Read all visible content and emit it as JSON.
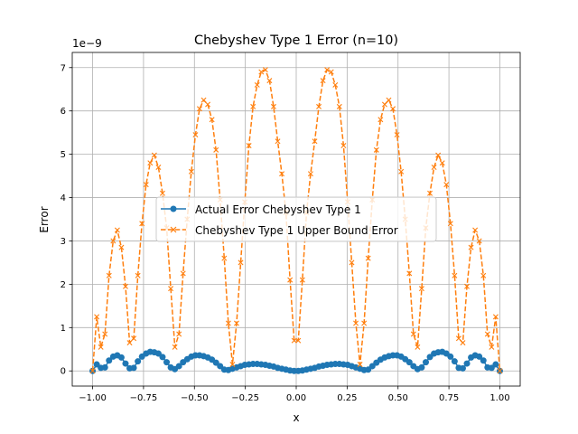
{
  "chart_data": {
    "type": "line",
    "title": "Chebyshev Type 1 Error (n=10)",
    "xlabel": "x",
    "ylabel": "Error",
    "offset_label": "1e−9",
    "xlim": [
      -1.1,
      1.1
    ],
    "ylim": [
      -0.35,
      7.35
    ],
    "grid": true,
    "legend_position": "center",
    "x_ticks": [
      {
        "value": -1.0,
        "label": "−1.00"
      },
      {
        "value": -0.75,
        "label": "−0.75"
      },
      {
        "value": -0.5,
        "label": "−0.50"
      },
      {
        "value": -0.25,
        "label": "−0.25"
      },
      {
        "value": 0.0,
        "label": "0.00"
      },
      {
        "value": 0.25,
        "label": "0.25"
      },
      {
        "value": 0.5,
        "label": "0.50"
      },
      {
        "value": 0.75,
        "label": "0.75"
      },
      {
        "value": 1.0,
        "label": "1.00"
      }
    ],
    "y_ticks": [
      {
        "value": 0,
        "label": "0"
      },
      {
        "value": 1,
        "label": "1"
      },
      {
        "value": 2,
        "label": "2"
      },
      {
        "value": 3,
        "label": "3"
      },
      {
        "value": 4,
        "label": "4"
      },
      {
        "value": 5,
        "label": "5"
      },
      {
        "value": 6,
        "label": "6"
      },
      {
        "value": 7,
        "label": "7"
      }
    ],
    "x": [
      -1.0,
      -0.9798,
      -0.9596,
      -0.9394,
      -0.9192,
      -0.899,
      -0.8788,
      -0.8586,
      -0.8384,
      -0.8182,
      -0.798,
      -0.7778,
      -0.7576,
      -0.7374,
      -0.7172,
      -0.697,
      -0.6768,
      -0.6566,
      -0.6364,
      -0.6162,
      -0.596,
      -0.5758,
      -0.5556,
      -0.5354,
      -0.5152,
      -0.4949,
      -0.4747,
      -0.4545,
      -0.4343,
      -0.4141,
      -0.3939,
      -0.3737,
      -0.3535,
      -0.3333,
      -0.3131,
      -0.2929,
      -0.2727,
      -0.2525,
      -0.2323,
      -0.2121,
      -0.1919,
      -0.1717,
      -0.1515,
      -0.1313,
      -0.1111,
      -0.0909,
      -0.0707,
      -0.0505,
      -0.0303,
      -0.0101,
      0.0101,
      0.0303,
      0.0505,
      0.0707,
      0.0909,
      0.1111,
      0.1313,
      0.1515,
      0.1717,
      0.1919,
      0.2121,
      0.2323,
      0.2525,
      0.2727,
      0.2929,
      0.3131,
      0.3333,
      0.3535,
      0.3737,
      0.3939,
      0.4141,
      0.4343,
      0.4545,
      0.4747,
      0.4949,
      0.5152,
      0.5354,
      0.5556,
      0.5758,
      0.596,
      0.6162,
      0.6364,
      0.6566,
      0.6768,
      0.697,
      0.7172,
      0.7374,
      0.7576,
      0.7778,
      0.798,
      0.8182,
      0.8384,
      0.8586,
      0.8788,
      0.899,
      0.9192,
      0.9394,
      0.9596,
      0.9798,
      1.0
    ],
    "series": [
      {
        "name": "Actual Error Chebyshev Type 1",
        "color": "#1f77b4",
        "line_style": "solid",
        "marker": "circle",
        "values": [
          0.0,
          0.15,
          0.07,
          0.08,
          0.24,
          0.33,
          0.36,
          0.31,
          0.17,
          0.06,
          0.07,
          0.22,
          0.33,
          0.4,
          0.44,
          0.43,
          0.4,
          0.32,
          0.2,
          0.08,
          0.04,
          0.11,
          0.2,
          0.27,
          0.33,
          0.36,
          0.36,
          0.34,
          0.31,
          0.26,
          0.19,
          0.11,
          0.03,
          0.02,
          0.05,
          0.08,
          0.11,
          0.14,
          0.15,
          0.16,
          0.16,
          0.15,
          0.14,
          0.12,
          0.1,
          0.07,
          0.05,
          0.03,
          0.01,
          0.0,
          0.0,
          0.01,
          0.03,
          0.05,
          0.07,
          0.1,
          0.12,
          0.14,
          0.15,
          0.16,
          0.16,
          0.15,
          0.14,
          0.11,
          0.08,
          0.05,
          0.02,
          0.03,
          0.11,
          0.19,
          0.26,
          0.31,
          0.34,
          0.36,
          0.36,
          0.33,
          0.27,
          0.2,
          0.11,
          0.04,
          0.08,
          0.2,
          0.32,
          0.4,
          0.43,
          0.44,
          0.4,
          0.33,
          0.22,
          0.07,
          0.06,
          0.17,
          0.31,
          0.36,
          0.33,
          0.24,
          0.08,
          0.07,
          0.15,
          0.0
        ]
      },
      {
        "name": "Chebyshev Type 1 Upper Bound Error",
        "color": "#ff7f0e",
        "line_style": "dashed",
        "marker": "x",
        "values": [
          0.0,
          1.25,
          0.55,
          0.85,
          2.2,
          3.0,
          3.25,
          2.85,
          1.95,
          0.65,
          0.75,
          2.2,
          3.4,
          4.3,
          4.8,
          4.98,
          4.7,
          4.1,
          3.3,
          1.9,
          0.55,
          0.85,
          2.25,
          3.5,
          4.6,
          5.45,
          6.05,
          6.25,
          6.15,
          5.8,
          5.1,
          3.95,
          2.6,
          1.1,
          0.15,
          1.1,
          2.5,
          3.9,
          5.2,
          6.1,
          6.6,
          6.9,
          6.95,
          6.7,
          6.1,
          5.3,
          4.55,
          3.65,
          2.1,
          0.7,
          0.7,
          2.1,
          3.65,
          4.55,
          5.3,
          6.1,
          6.7,
          6.95,
          6.9,
          6.6,
          6.1,
          5.2,
          3.9,
          2.5,
          1.1,
          0.15,
          1.1,
          2.6,
          3.95,
          5.1,
          5.8,
          6.15,
          6.25,
          6.05,
          5.45,
          4.6,
          3.5,
          2.25,
          0.85,
          0.55,
          1.9,
          3.3,
          4.1,
          4.7,
          4.98,
          4.8,
          4.3,
          3.4,
          2.2,
          0.75,
          0.65,
          1.95,
          2.85,
          3.25,
          3.0,
          2.2,
          0.85,
          0.55,
          1.25,
          0.0
        ]
      }
    ]
  }
}
